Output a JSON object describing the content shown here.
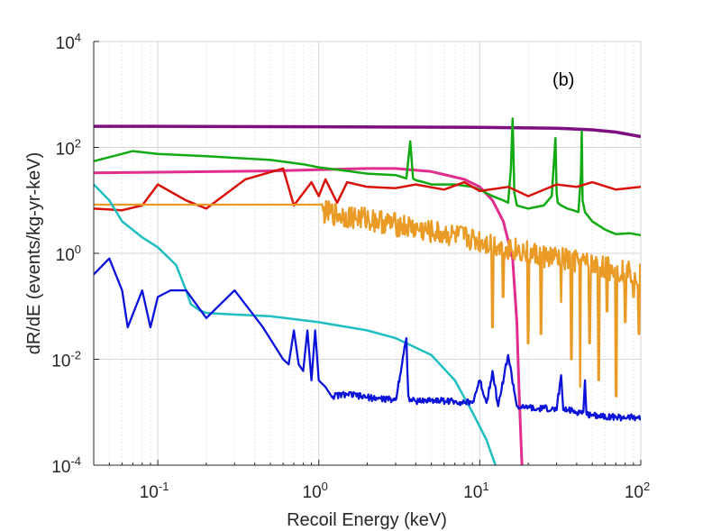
{
  "chart_data": {
    "type": "line",
    "title": "",
    "panel_label": "(b)",
    "xlabel": "Recoil Energy (keV)",
    "ylabel": "dR/dE (events/kg-yr-keV)",
    "xscale": "log",
    "yscale": "log",
    "xlim": [
      0.04,
      100
    ],
    "ylim": [
      0.0001,
      10000
    ],
    "grid": true,
    "x_ticks": [
      {
        "value": 0.1,
        "mantissa": "10",
        "exp": "-1"
      },
      {
        "value": 1,
        "mantissa": "10",
        "exp": "0"
      },
      {
        "value": 10,
        "mantissa": "10",
        "exp": "1"
      },
      {
        "value": 100,
        "mantissa": "10",
        "exp": "2"
      }
    ],
    "y_ticks": [
      {
        "value": 0.0001,
        "mantissa": "10",
        "exp": "-4"
      },
      {
        "value": 0.01,
        "mantissa": "10",
        "exp": "-2"
      },
      {
        "value": 1,
        "mantissa": "10",
        "exp": "0"
      },
      {
        "value": 100,
        "mantissa": "10",
        "exp": "2"
      },
      {
        "value": 10000,
        "mantissa": "10",
        "exp": "4"
      }
    ],
    "series": [
      {
        "color": "#7e0f80",
        "stroke_width": 3.5,
        "x": [
          0.04,
          0.1,
          1,
          10,
          30,
          50,
          70,
          100
        ],
        "y": [
          250,
          250,
          245,
          240,
          230,
          215,
          195,
          160
        ]
      },
      {
        "color": "#e02d8e",
        "stroke_width": 3,
        "x": [
          0.04,
          0.1,
          0.5,
          1,
          2,
          3,
          5,
          8,
          10,
          12,
          14,
          16,
          17,
          17.5,
          18,
          18.3
        ],
        "y": [
          33,
          34,
          36,
          38,
          40,
          40,
          35,
          25,
          18,
          10,
          4,
          0.8,
          0.05,
          0.003,
          0.0003,
          0.0001
        ]
      },
      {
        "color": "#12aa12",
        "stroke_width": 2.5,
        "x": [
          0.04,
          0.07,
          0.1,
          0.2,
          0.5,
          0.8,
          1,
          1.5,
          2,
          3,
          3.5,
          3.7,
          3.85,
          4,
          4.5,
          5,
          7,
          9,
          10,
          12,
          14,
          15,
          15.6,
          16,
          16.4,
          17,
          20,
          25,
          28,
          29.5,
          30,
          30.5,
          32,
          35,
          38,
          41,
          42.5,
          43,
          43.5,
          45,
          50,
          60,
          70,
          85,
          100
        ],
        "y": [
          55,
          85,
          75,
          68,
          58,
          48,
          42,
          36,
          32,
          30,
          26,
          130,
          26,
          24,
          22,
          20,
          20,
          18,
          16,
          12,
          10,
          9,
          40,
          350,
          14,
          8,
          7,
          8,
          12,
          150,
          14,
          9,
          8,
          7,
          6.5,
          6,
          30,
          200,
          10,
          6,
          4,
          2.8,
          2.3,
          2.4,
          2.2
        ]
      },
      {
        "color": "#d8120a",
        "stroke_width": 2.5,
        "x": [
          0.04,
          0.06,
          0.08,
          0.1,
          0.15,
          0.2,
          0.35,
          0.6,
          0.7,
          0.9,
          1,
          1.1,
          1.3,
          1.5,
          2,
          3,
          4,
          6,
          8,
          10,
          15,
          20,
          30,
          40,
          50,
          70,
          100
        ],
        "y": [
          7,
          6.5,
          8,
          20,
          10,
          7,
          25,
          40,
          8,
          22,
          12,
          25,
          9,
          22,
          18,
          17,
          20,
          16,
          22,
          15,
          18,
          12,
          20,
          18,
          22,
          16,
          18
        ]
      },
      {
        "color": "#e99b26",
        "stroke_width": 2.3,
        "x": [
          0.04,
          0.1,
          0.5,
          1,
          1.05,
          1.5,
          2,
          3,
          5,
          8,
          10,
          15,
          20,
          30,
          50,
          70,
          100
        ],
        "y": [
          8.3,
          8.3,
          8.3,
          8.3,
          6,
          5,
          4.5,
          3.5,
          2.5,
          2,
          1.7,
          1.3,
          1.0,
          0.8,
          0.6,
          0.5,
          0.4
        ],
        "noise": 0.45,
        "noise_from": 1.05,
        "dips": [
          [
            12,
            0.04
          ],
          [
            14,
            0.15
          ],
          [
            20,
            0.02
          ],
          [
            24,
            0.03
          ],
          [
            32,
            0.12
          ],
          [
            37,
            0.01
          ],
          [
            42,
            0.003
          ],
          [
            48,
            0.02
          ],
          [
            55,
            0.004
          ],
          [
            62,
            0.08
          ],
          [
            70,
            0.002
          ],
          [
            80,
            0.05
          ],
          [
            90,
            0.15
          ],
          [
            97,
            0.03
          ]
        ]
      },
      {
        "color": "#1fbec1",
        "stroke_width": 2.5,
        "x": [
          0.04,
          0.05,
          0.06,
          0.08,
          0.1,
          0.13,
          0.15,
          0.16,
          0.18,
          0.2,
          0.3,
          0.5,
          1,
          2,
          3,
          5,
          7,
          9,
          11,
          12.5
        ],
        "y": [
          20,
          10,
          4,
          2,
          1.3,
          0.6,
          0.2,
          0.11,
          0.085,
          0.075,
          0.07,
          0.065,
          0.05,
          0.035,
          0.025,
          0.012,
          0.004,
          0.001,
          0.0003,
          0.0001
        ]
      },
      {
        "color": "#0b12d9",
        "stroke_width": 2.3,
        "x": [
          0.04,
          0.05,
          0.06,
          0.065,
          0.08,
          0.09,
          0.1,
          0.12,
          0.15,
          0.2,
          0.3,
          0.45,
          0.6,
          0.65,
          0.7,
          0.75,
          0.8,
          0.85,
          0.9,
          0.95,
          1,
          1.1,
          1.2,
          1.5,
          2,
          3,
          3.5,
          3.6,
          3.7,
          4,
          5,
          7,
          9,
          10,
          11,
          12,
          13,
          15,
          17,
          18,
          19,
          20,
          22,
          25,
          30,
          32,
          33,
          35,
          40,
          44,
          45,
          46,
          50,
          70,
          100
        ],
        "y": [
          0.4,
          0.8,
          0.2,
          0.04,
          0.2,
          0.04,
          0.15,
          0.2,
          0.2,
          0.06,
          0.2,
          0.04,
          0.01,
          0.008,
          0.035,
          0.008,
          0.006,
          0.035,
          0.004,
          0.035,
          0.004,
          0.003,
          0.002,
          0.0022,
          0.0019,
          0.0017,
          0.025,
          0.002,
          0.0017,
          0.0016,
          0.0017,
          0.0016,
          0.0015,
          0.004,
          0.0015,
          0.006,
          0.0013,
          0.012,
          0.0013,
          0.0012,
          0.0012,
          0.0013,
          0.0011,
          0.0012,
          0.0011,
          0.005,
          0.0011,
          0.0011,
          0.001,
          0.001,
          0.004,
          0.0009,
          0.0009,
          0.0008,
          0.0008
        ],
        "noise": 0.12,
        "noise_from": 1.2
      }
    ]
  }
}
